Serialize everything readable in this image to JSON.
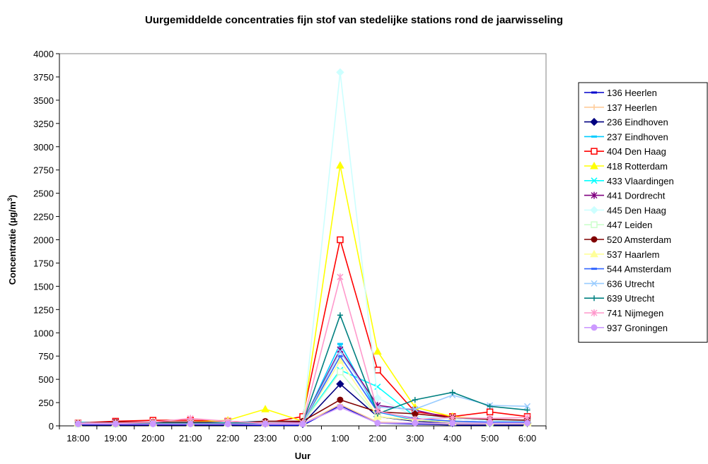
{
  "chart_data": {
    "type": "line",
    "title": "Uurgemiddelde concentraties fijn stof van stedelijke stations rond de jaarwisseling",
    "xlabel": "Uur",
    "ylabel_prefix": "Concentratie (µg/m",
    "ylabel_sup": "3",
    "ylabel_suffix": ")",
    "ylim": [
      0,
      4000
    ],
    "yticks": [
      "0",
      "250",
      "500",
      "750",
      "1000",
      "1250",
      "1500",
      "1750",
      "2000",
      "2250",
      "2500",
      "2750",
      "3000",
      "3250",
      "3500",
      "3750",
      "4000"
    ],
    "categories": [
      "18:00",
      "19:00",
      "20:00",
      "21:00",
      "22:00",
      "23:00",
      "0:00",
      "1:00",
      "2:00",
      "3:00",
      "4:00",
      "5:00",
      "6:00"
    ],
    "grid": false,
    "legend_position": "right",
    "series": [
      {
        "name": "136 Heerlen",
        "color": "#0000cc",
        "marker": "dash",
        "values": [
          10,
          10,
          10,
          10,
          10,
          5,
          5,
          220,
          30,
          20,
          10,
          10,
          10
        ]
      },
      {
        "name": "137 Heerlen",
        "color": "#ffcc99",
        "marker": "plus",
        "values": [
          20,
          20,
          20,
          20,
          20,
          20,
          20,
          230,
          40,
          30,
          20,
          20,
          20
        ]
      },
      {
        "name": "236 Eindhoven",
        "color": "#000080",
        "marker": "diamond",
        "values": [
          30,
          25,
          30,
          30,
          30,
          25,
          20,
          450,
          100,
          50,
          30,
          30,
          30
        ]
      },
      {
        "name": "237 Eindhoven",
        "color": "#00ccff",
        "marker": "dash",
        "values": [
          40,
          30,
          30,
          30,
          40,
          50,
          30,
          880,
          150,
          60,
          50,
          40,
          40
        ]
      },
      {
        "name": "404 Den Haag",
        "color": "#ff0000",
        "marker": "square",
        "values": [
          30,
          50,
          60,
          60,
          50,
          30,
          100,
          2000,
          600,
          150,
          100,
          150,
          100
        ]
      },
      {
        "name": "418 Rotterdam",
        "color": "#ffff00",
        "marker": "triangle",
        "values": [
          30,
          30,
          40,
          40,
          60,
          180,
          50,
          2800,
          800,
          200,
          100,
          70,
          50
        ]
      },
      {
        "name": "433 Vlaardingen",
        "color": "#00ffff",
        "marker": "x",
        "values": [
          30,
          30,
          30,
          40,
          30,
          30,
          40,
          600,
          420,
          100,
          80,
          60,
          50
        ]
      },
      {
        "name": "441 Dordrecht",
        "color": "#800080",
        "marker": "star",
        "values": [
          30,
          40,
          40,
          40,
          40,
          40,
          40,
          820,
          220,
          170,
          80,
          60,
          60
        ]
      },
      {
        "name": "445 Den Haag",
        "color": "#ccffff",
        "marker": "diamond",
        "values": [
          30,
          30,
          30,
          30,
          40,
          40,
          30,
          3800,
          300,
          100,
          80,
          60,
          50
        ]
      },
      {
        "name": "447 Leiden",
        "color": "#ccffcc",
        "marker": "square",
        "values": [
          20,
          20,
          30,
          30,
          30,
          30,
          30,
          580,
          100,
          60,
          40,
          30,
          30
        ]
      },
      {
        "name": "520 Amsterdam",
        "color": "#800000",
        "marker": "circle",
        "values": [
          30,
          40,
          40,
          40,
          30,
          50,
          50,
          280,
          150,
          130,
          90,
          70,
          60
        ]
      },
      {
        "name": "537 Haarlem",
        "color": "#ffff99",
        "marker": "triangle",
        "values": [
          30,
          30,
          30,
          30,
          30,
          30,
          30,
          700,
          100,
          60,
          40,
          40,
          30
        ]
      },
      {
        "name": "544 Amsterdam",
        "color": "#3366ff",
        "marker": "dash",
        "values": [
          30,
          30,
          30,
          30,
          30,
          30,
          30,
          750,
          150,
          80,
          50,
          40,
          40
        ]
      },
      {
        "name": "636 Utrecht",
        "color": "#99ccff",
        "marker": "x",
        "values": [
          30,
          30,
          30,
          30,
          30,
          30,
          30,
          800,
          200,
          180,
          330,
          220,
          210
        ]
      },
      {
        "name": "639 Utrecht",
        "color": "#008080",
        "marker": "plus",
        "values": [
          30,
          30,
          30,
          30,
          30,
          30,
          30,
          1190,
          130,
          280,
          360,
          210,
          170
        ]
      },
      {
        "name": "741 Nijmegen",
        "color": "#ff99cc",
        "marker": "star",
        "values": [
          30,
          30,
          40,
          80,
          50,
          30,
          30,
          1600,
          160,
          70,
          90,
          80,
          90
        ]
      },
      {
        "name": "937 Groningen",
        "color": "#cc99ff",
        "marker": "circle",
        "values": [
          20,
          20,
          20,
          20,
          20,
          20,
          20,
          200,
          30,
          30,
          30,
          30,
          30
        ]
      }
    ]
  }
}
